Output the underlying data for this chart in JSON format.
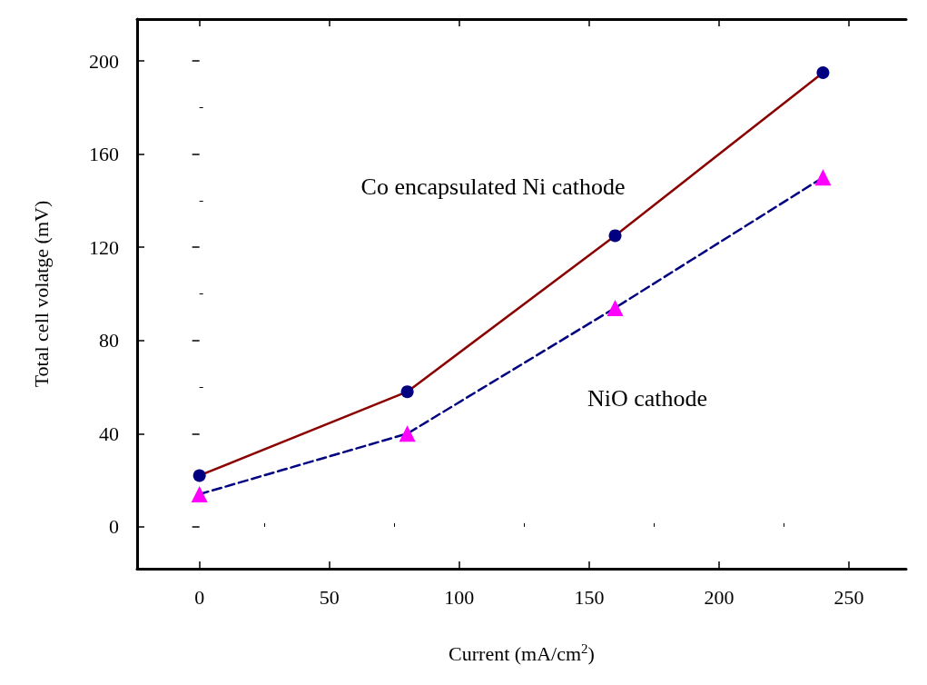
{
  "chart_data": {
    "type": "line",
    "xlabel": "Current (mA/cm$^{2}$)",
    "ylabel": "Total cell volatge (mV)",
    "x": [
      0,
      80,
      160,
      240
    ],
    "series": [
      {
        "name": "Co encapsulated Ni cathode",
        "color": "#8b0000",
        "colors": [
          "#000080",
          "#000080",
          "#000080",
          "#000080"
        ],
        "marker": "circle",
        "line_style": "solid",
        "values": [
          22,
          58,
          125,
          195
        ]
      },
      {
        "name": "NiO cathode",
        "color": "#000080",
        "colors": [
          "#ff00ff",
          "#ff00ff",
          "#ff00ff",
          "#ff00ff"
        ],
        "marker": "triangle",
        "line_style": "dashed",
        "values": [
          14,
          40,
          94,
          150
        ]
      }
    ],
    "xlim": [
      -24,
      272
    ],
    "xticks": [
      0,
      50,
      100,
      150,
      200,
      250
    ],
    "ylim": [
      -18,
      218
    ],
    "yticks": [
      0,
      40,
      80,
      120,
      160,
      200
    ],
    "grid": false,
    "legend": false
  }
}
